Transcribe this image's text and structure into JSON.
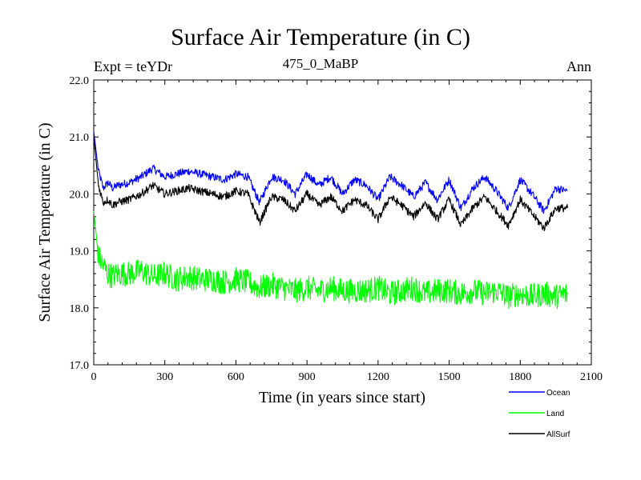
{
  "chart_data": {
    "type": "line",
    "title": "Surface Air Temperature (in C)",
    "subtitle": "475_0_MaBP",
    "left_label": "Expt = teYDr",
    "right_label": "Ann",
    "xlabel": "Time (in years since start)",
    "ylabel": "Surface Air Temperature (in C)",
    "xlim": [
      0,
      2100
    ],
    "ylim": [
      17.0,
      22.0
    ],
    "x_ticks": [
      0,
      300,
      600,
      900,
      1200,
      1500,
      1800,
      2100
    ],
    "y_ticks": [
      "17.0",
      "18.0",
      "19.0",
      "20.0",
      "21.0",
      "22.0"
    ],
    "series": [
      {
        "name": "Ocean",
        "color": "#0000ff",
        "x": [
          0,
          20,
          40,
          60,
          80,
          100,
          150,
          200,
          250,
          300,
          350,
          400,
          450,
          500,
          550,
          600,
          650,
          700,
          750,
          800,
          850,
          900,
          950,
          1000,
          1050,
          1100,
          1150,
          1200,
          1250,
          1300,
          1350,
          1400,
          1450,
          1500,
          1550,
          1600,
          1650,
          1700,
          1750,
          1800,
          1850,
          1900,
          1950,
          2000
        ],
        "values": [
          21.1,
          20.4,
          20.1,
          20.2,
          20.1,
          20.15,
          20.2,
          20.3,
          20.45,
          20.3,
          20.35,
          20.4,
          20.35,
          20.3,
          20.25,
          20.35,
          20.3,
          19.85,
          20.3,
          20.25,
          20.0,
          20.35,
          20.15,
          20.3,
          20.0,
          20.25,
          20.15,
          19.9,
          20.3,
          20.15,
          19.95,
          20.2,
          19.9,
          20.25,
          19.75,
          20.1,
          20.3,
          20.05,
          19.75,
          20.25,
          20.0,
          19.7,
          20.1,
          20.05
        ]
      },
      {
        "name": "Land",
        "color": "#00ff00",
        "x": [
          0,
          20,
          40,
          60,
          80,
          100,
          150,
          200,
          250,
          300,
          350,
          400,
          450,
          500,
          550,
          600,
          650,
          700,
          750,
          800,
          850,
          900,
          950,
          1000,
          1050,
          1100,
          1150,
          1200,
          1250,
          1300,
          1350,
          1400,
          1450,
          1500,
          1550,
          1600,
          1650,
          1700,
          1750,
          1800,
          1850,
          1900,
          1950,
          2000
        ],
        "values": [
          19.7,
          18.9,
          18.75,
          18.6,
          18.55,
          18.6,
          18.6,
          18.65,
          18.55,
          18.6,
          18.5,
          18.55,
          18.5,
          18.5,
          18.45,
          18.5,
          18.45,
          18.35,
          18.4,
          18.35,
          18.3,
          18.35,
          18.3,
          18.35,
          18.3,
          18.3,
          18.3,
          18.35,
          18.25,
          18.3,
          18.35,
          18.25,
          18.3,
          18.3,
          18.25,
          18.3,
          18.25,
          18.3,
          18.2,
          18.25,
          18.2,
          18.25,
          18.2,
          18.25
        ]
      },
      {
        "name": "AllSurf",
        "color": "#000000",
        "x": [
          0,
          20,
          40,
          60,
          80,
          100,
          150,
          200,
          250,
          300,
          350,
          400,
          450,
          500,
          550,
          600,
          650,
          700,
          750,
          800,
          850,
          900,
          950,
          1000,
          1050,
          1100,
          1150,
          1200,
          1250,
          1300,
          1350,
          1400,
          1450,
          1500,
          1550,
          1600,
          1650,
          1700,
          1750,
          1800,
          1850,
          1900,
          1950,
          2000
        ],
        "values": [
          21.0,
          20.15,
          19.85,
          19.9,
          19.8,
          19.85,
          19.9,
          20.0,
          20.15,
          20.0,
          20.05,
          20.1,
          20.05,
          20.0,
          19.95,
          20.05,
          20.0,
          19.5,
          19.95,
          19.9,
          19.7,
          20.0,
          19.8,
          19.95,
          19.7,
          19.9,
          19.8,
          19.55,
          19.95,
          19.8,
          19.6,
          19.85,
          19.55,
          19.9,
          19.45,
          19.75,
          19.95,
          19.7,
          19.45,
          19.9,
          19.65,
          19.4,
          19.75,
          19.75
        ]
      }
    ],
    "legend_position": "bottom-right"
  }
}
